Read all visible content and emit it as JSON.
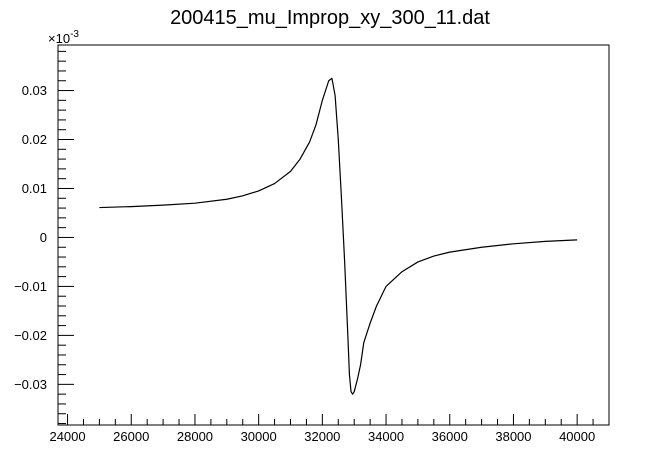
{
  "chart_data": {
    "type": "line",
    "title": "200415_mu_Improp_xy_300_11.dat",
    "y_multiplier": "×10",
    "y_multiplier_exp": "-3",
    "xlabel": "",
    "ylabel": "",
    "xlim": [
      23700,
      41000
    ],
    "ylim": [
      -0.0383,
      0.0393
    ],
    "grid": false,
    "legend": "none",
    "line_color": "#000000",
    "x_ticks": [
      24000,
      26000,
      28000,
      30000,
      32000,
      34000,
      36000,
      38000,
      40000
    ],
    "x_tick_labels": [
      "24000",
      "26000",
      "28000",
      "30000",
      "32000",
      "34000",
      "36000",
      "38000",
      "40000"
    ],
    "y_ticks": [
      -0.03,
      -0.02,
      -0.01,
      0,
      0.01,
      0.02,
      0.03
    ],
    "y_tick_labels": [
      "−0.03",
      "−0.02",
      "−0.01",
      "0",
      "0.01",
      "0.02",
      "0.03"
    ],
    "series": [
      {
        "x": [
          25000,
          26000,
          27000,
          28000,
          29000,
          29500,
          30000,
          30500,
          31000,
          31300,
          31600,
          31800,
          32000,
          32100,
          32200,
          32300,
          32400,
          32500,
          32600,
          32700,
          32800,
          32850,
          32900,
          32950,
          33000,
          33100,
          33200,
          33300,
          33400,
          33500,
          33700,
          34000,
          34500,
          35000,
          35500,
          36000,
          37000,
          38000,
          39000,
          40000
        ],
        "y": [
          0.0061,
          0.0063,
          0.0066,
          0.007,
          0.0078,
          0.0085,
          0.0095,
          0.011,
          0.0135,
          0.016,
          0.0195,
          0.023,
          0.028,
          0.03,
          0.032,
          0.0325,
          0.029,
          0.02,
          0.008,
          -0.005,
          -0.02,
          -0.028,
          -0.0315,
          -0.032,
          -0.0315,
          -0.029,
          -0.026,
          -0.0215,
          -0.0195,
          -0.0175,
          -0.014,
          -0.01,
          -0.007,
          -0.005,
          -0.0038,
          -0.003,
          -0.002,
          -0.0013,
          -0.0008,
          -0.0005
        ]
      }
    ]
  }
}
